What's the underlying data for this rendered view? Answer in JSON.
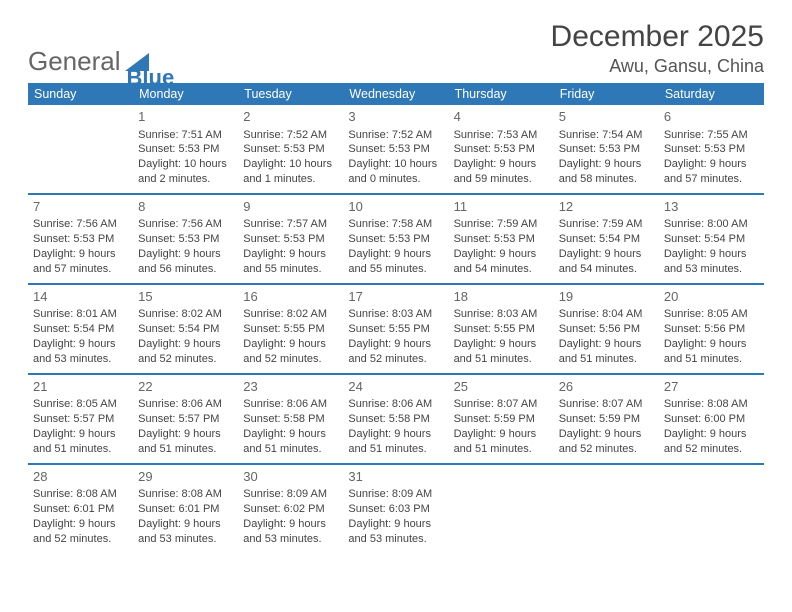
{
  "logo": {
    "text1": "General",
    "text2": "Blue",
    "triangle_color": "#2f78b7"
  },
  "title": "December 2025",
  "location": "Awu, Gansu, China",
  "header_bg": "#2f78b7",
  "rule_color": "#2f78b7",
  "daynames": [
    "Sunday",
    "Monday",
    "Tuesday",
    "Wednesday",
    "Thursday",
    "Friday",
    "Saturday"
  ],
  "weeks": [
    [
      null,
      {
        "n": "1",
        "sr": "7:51 AM",
        "ss": "5:53 PM",
        "dl": "10 hours and 2 minutes."
      },
      {
        "n": "2",
        "sr": "7:52 AM",
        "ss": "5:53 PM",
        "dl": "10 hours and 1 minutes."
      },
      {
        "n": "3",
        "sr": "7:52 AM",
        "ss": "5:53 PM",
        "dl": "10 hours and 0 minutes."
      },
      {
        "n": "4",
        "sr": "7:53 AM",
        "ss": "5:53 PM",
        "dl": "9 hours and 59 minutes."
      },
      {
        "n": "5",
        "sr": "7:54 AM",
        "ss": "5:53 PM",
        "dl": "9 hours and 58 minutes."
      },
      {
        "n": "6",
        "sr": "7:55 AM",
        "ss": "5:53 PM",
        "dl": "9 hours and 57 minutes."
      }
    ],
    [
      {
        "n": "7",
        "sr": "7:56 AM",
        "ss": "5:53 PM",
        "dl": "9 hours and 57 minutes."
      },
      {
        "n": "8",
        "sr": "7:56 AM",
        "ss": "5:53 PM",
        "dl": "9 hours and 56 minutes."
      },
      {
        "n": "9",
        "sr": "7:57 AM",
        "ss": "5:53 PM",
        "dl": "9 hours and 55 minutes."
      },
      {
        "n": "10",
        "sr": "7:58 AM",
        "ss": "5:53 PM",
        "dl": "9 hours and 55 minutes."
      },
      {
        "n": "11",
        "sr": "7:59 AM",
        "ss": "5:53 PM",
        "dl": "9 hours and 54 minutes."
      },
      {
        "n": "12",
        "sr": "7:59 AM",
        "ss": "5:54 PM",
        "dl": "9 hours and 54 minutes."
      },
      {
        "n": "13",
        "sr": "8:00 AM",
        "ss": "5:54 PM",
        "dl": "9 hours and 53 minutes."
      }
    ],
    [
      {
        "n": "14",
        "sr": "8:01 AM",
        "ss": "5:54 PM",
        "dl": "9 hours and 53 minutes."
      },
      {
        "n": "15",
        "sr": "8:02 AM",
        "ss": "5:54 PM",
        "dl": "9 hours and 52 minutes."
      },
      {
        "n": "16",
        "sr": "8:02 AM",
        "ss": "5:55 PM",
        "dl": "9 hours and 52 minutes."
      },
      {
        "n": "17",
        "sr": "8:03 AM",
        "ss": "5:55 PM",
        "dl": "9 hours and 52 minutes."
      },
      {
        "n": "18",
        "sr": "8:03 AM",
        "ss": "5:55 PM",
        "dl": "9 hours and 51 minutes."
      },
      {
        "n": "19",
        "sr": "8:04 AM",
        "ss": "5:56 PM",
        "dl": "9 hours and 51 minutes."
      },
      {
        "n": "20",
        "sr": "8:05 AM",
        "ss": "5:56 PM",
        "dl": "9 hours and 51 minutes."
      }
    ],
    [
      {
        "n": "21",
        "sr": "8:05 AM",
        "ss": "5:57 PM",
        "dl": "9 hours and 51 minutes."
      },
      {
        "n": "22",
        "sr": "8:06 AM",
        "ss": "5:57 PM",
        "dl": "9 hours and 51 minutes."
      },
      {
        "n": "23",
        "sr": "8:06 AM",
        "ss": "5:58 PM",
        "dl": "9 hours and 51 minutes."
      },
      {
        "n": "24",
        "sr": "8:06 AM",
        "ss": "5:58 PM",
        "dl": "9 hours and 51 minutes."
      },
      {
        "n": "25",
        "sr": "8:07 AM",
        "ss": "5:59 PM",
        "dl": "9 hours and 51 minutes."
      },
      {
        "n": "26",
        "sr": "8:07 AM",
        "ss": "5:59 PM",
        "dl": "9 hours and 52 minutes."
      },
      {
        "n": "27",
        "sr": "8:08 AM",
        "ss": "6:00 PM",
        "dl": "9 hours and 52 minutes."
      }
    ],
    [
      {
        "n": "28",
        "sr": "8:08 AM",
        "ss": "6:01 PM",
        "dl": "9 hours and 52 minutes."
      },
      {
        "n": "29",
        "sr": "8:08 AM",
        "ss": "6:01 PM",
        "dl": "9 hours and 53 minutes."
      },
      {
        "n": "30",
        "sr": "8:09 AM",
        "ss": "6:02 PM",
        "dl": "9 hours and 53 minutes."
      },
      {
        "n": "31",
        "sr": "8:09 AM",
        "ss": "6:03 PM",
        "dl": "9 hours and 53 minutes."
      },
      null,
      null,
      null
    ]
  ],
  "labels": {
    "sunrise": "Sunrise:",
    "sunset": "Sunset:",
    "daylight": "Daylight:"
  }
}
